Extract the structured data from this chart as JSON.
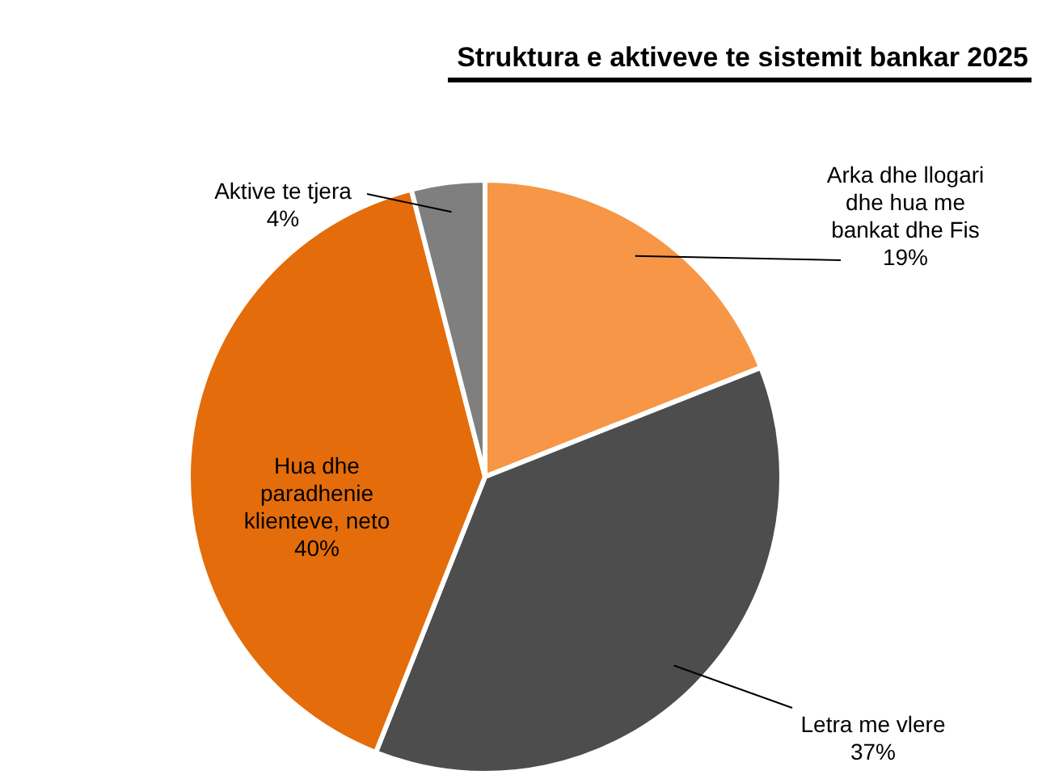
{
  "chart_data": {
    "type": "pie",
    "title": "Struktura e aktiveve te sistemit bankar 2025",
    "categories": [
      "Arka dhe llogari dhe hua me bankat dhe Fis",
      "Letra me vlere",
      "Hua dhe paradhenie klienteve, neto",
      "Aktive te tjera"
    ],
    "values": [
      19,
      37,
      40,
      4
    ],
    "value_labels": [
      "19%",
      "37%",
      "40%",
      "4%"
    ],
    "colors": [
      "#f79646",
      "#4d4d4d",
      "#e46c0a",
      "#7f7f7f"
    ]
  }
}
